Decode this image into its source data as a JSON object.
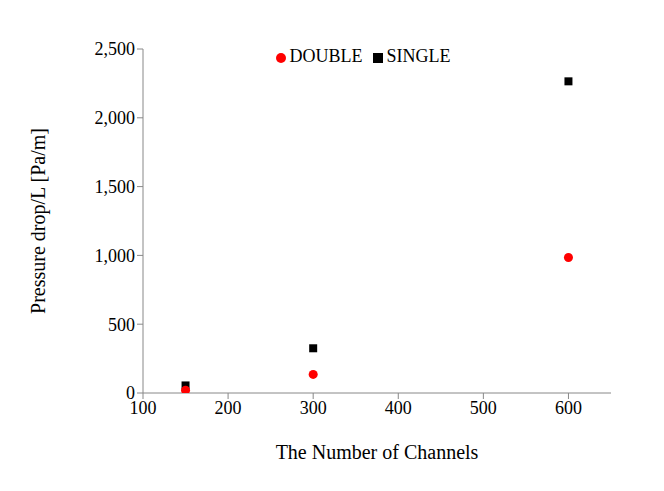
{
  "chart_data": {
    "type": "scatter",
    "x_label": "The Number of Channels",
    "y_label": "Pressure drop/L  [Pa/m]",
    "xlim": [
      100,
      650
    ],
    "xticks": [
      100,
      200,
      300,
      400,
      500,
      600
    ],
    "ylim": [
      0,
      2500
    ],
    "yticks": [
      0,
      500,
      {
        "value": 1000,
        "label": "1,000"
      },
      {
        "value": 1500,
        "label": "1,500"
      },
      {
        "value": 2000,
        "label": "2,000"
      },
      {
        "value": 2500,
        "label": "2,500"
      }
    ],
    "grid": false,
    "legend": "top",
    "series": [
      {
        "name": "SINGLE",
        "color": "#000000",
        "marker": "square",
        "x": [
          150,
          300,
          600
        ],
        "values": [
          55,
          325,
          2265
        ]
      },
      {
        "name": "DOUBLE",
        "color": "#ff0000",
        "marker": "circle",
        "x": [
          150,
          300,
          600
        ],
        "values": [
          20,
          135,
          985
        ]
      }
    ]
  }
}
